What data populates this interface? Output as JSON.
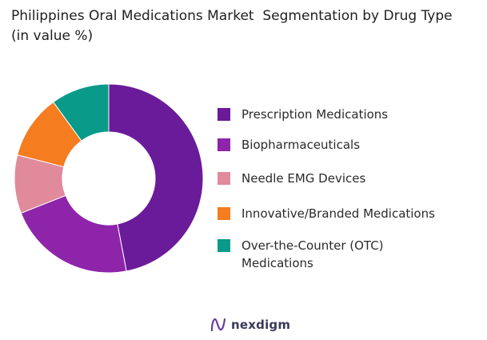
{
  "chart_data": {
    "type": "pie",
    "title": "Philippines Oral Medications Market  Segmentation by Drug Type  (in value %)",
    "donut": true,
    "categories": [
      "Prescription Medications",
      "Biopharmaceuticals",
      "Needle EMG Devices",
      "Innovative/Branded Medications",
      "Over-the-Counter (OTC) Medications"
    ],
    "values": [
      47,
      22,
      10,
      11,
      10
    ],
    "colors": [
      "#6a1b9a",
      "#8e24aa",
      "#e08a9c",
      "#f57c1f",
      "#0a9a8a"
    ],
    "legend_position": "right"
  },
  "legend": [
    {
      "label": "Prescription Medications",
      "color": "#6a1b9a"
    },
    {
      "label": "Biopharmaceuticals",
      "color": "#8e24aa"
    },
    {
      "label": "Needle EMG Devices",
      "color": "#e08a9c"
    },
    {
      "label": "Innovative/Branded Medications",
      "color": "#f57c1f"
    },
    {
      "label": "Over-the-Counter (OTC) Medications",
      "color": "#0a9a8a"
    }
  ],
  "footer": {
    "brand": "nexdigm",
    "logo_icon": "nexdigm-logo-icon"
  }
}
